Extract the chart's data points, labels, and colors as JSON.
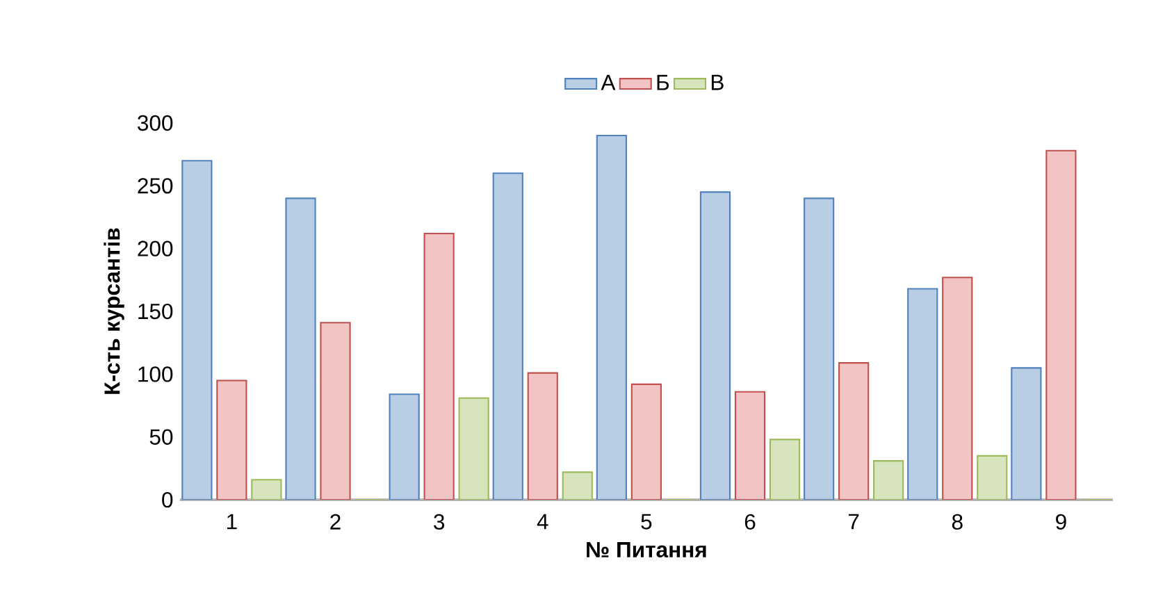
{
  "chart_data": {
    "type": "bar",
    "xlabel": "№ Питання",
    "ylabel": "К-сть курсантів",
    "categories": [
      "1",
      "2",
      "3",
      "4",
      "5",
      "6",
      "7",
      "8",
      "9"
    ],
    "series": [
      {
        "name": "А",
        "color": "#b9cde5",
        "values": [
          270,
          240,
          84,
          260,
          290,
          245,
          240,
          168,
          105
        ]
      },
      {
        "name": "Б",
        "color": "#f2c4c4",
        "values": [
          95,
          141,
          212,
          101,
          92,
          86,
          109,
          177,
          278
        ]
      },
      {
        "name": "В",
        "color": "#d7e4bd",
        "values": [
          16,
          0,
          81,
          22,
          0,
          48,
          31,
          35,
          0
        ]
      }
    ],
    "ylim": [
      0,
      300
    ],
    "yticks": [
      0,
      50,
      100,
      150,
      200,
      250,
      300
    ],
    "legend": "top"
  }
}
